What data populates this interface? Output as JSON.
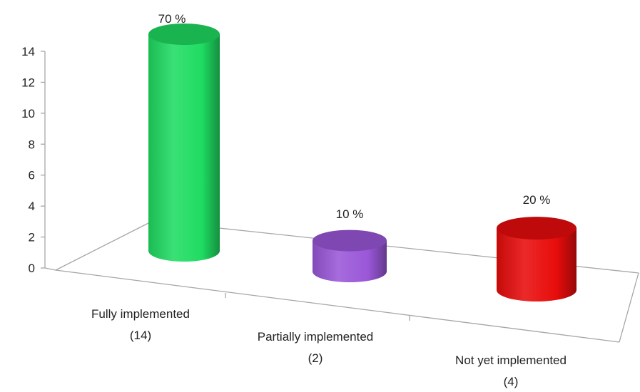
{
  "chart_data": {
    "type": "bar",
    "categories": [
      {
        "line1": "Fully implemented",
        "line2": "(14)"
      },
      {
        "line1": "Partially implemented",
        "line2": "(2)"
      },
      {
        "line1": "Not yet implemented",
        "line2": "(4)"
      }
    ],
    "values": [
      14,
      2,
      4
    ],
    "data_labels": [
      "70 %",
      "10 %",
      "20 %"
    ],
    "colors": [
      "#1fdc62",
      "#9a57d8",
      "#e80c0c"
    ],
    "ylim": [
      0,
      14
    ],
    "yticks": [
      "0",
      "2",
      "4",
      "6",
      "8",
      "10",
      "12",
      "14"
    ],
    "style": "3d-cylinder",
    "grid": false,
    "legend": "none"
  }
}
